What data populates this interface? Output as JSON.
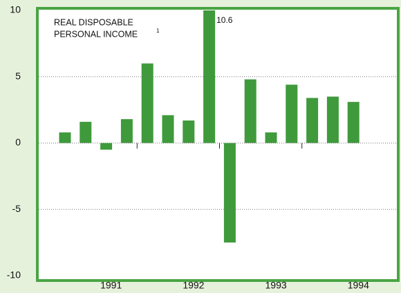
{
  "chart_data": {
    "type": "bar",
    "title_lines": [
      "REAL DISPOSABLE",
      "PERSONAL INCOME"
    ],
    "title_footnote": "1",
    "categories": [
      null,
      null,
      null,
      null,
      null,
      null,
      null,
      null,
      null,
      null,
      null,
      null,
      null,
      null,
      null
    ],
    "values": [
      0.8,
      1.6,
      -0.5,
      1.8,
      6.0,
      2.1,
      1.7,
      10.6,
      -7.5,
      4.8,
      0.8,
      4.4,
      3.4,
      3.5,
      3.1
    ],
    "value_labels": [
      null,
      null,
      null,
      null,
      null,
      null,
      null,
      "10.6",
      null,
      null,
      null,
      null,
      null,
      null,
      null
    ],
    "year_labels": [
      "1991",
      "1992",
      "1993",
      "1994"
    ],
    "color": "#3f9a3c",
    "ylim": [
      -10,
      10
    ],
    "yticks": [
      -10,
      -5,
      0,
      5,
      10
    ],
    "grid": true
  }
}
